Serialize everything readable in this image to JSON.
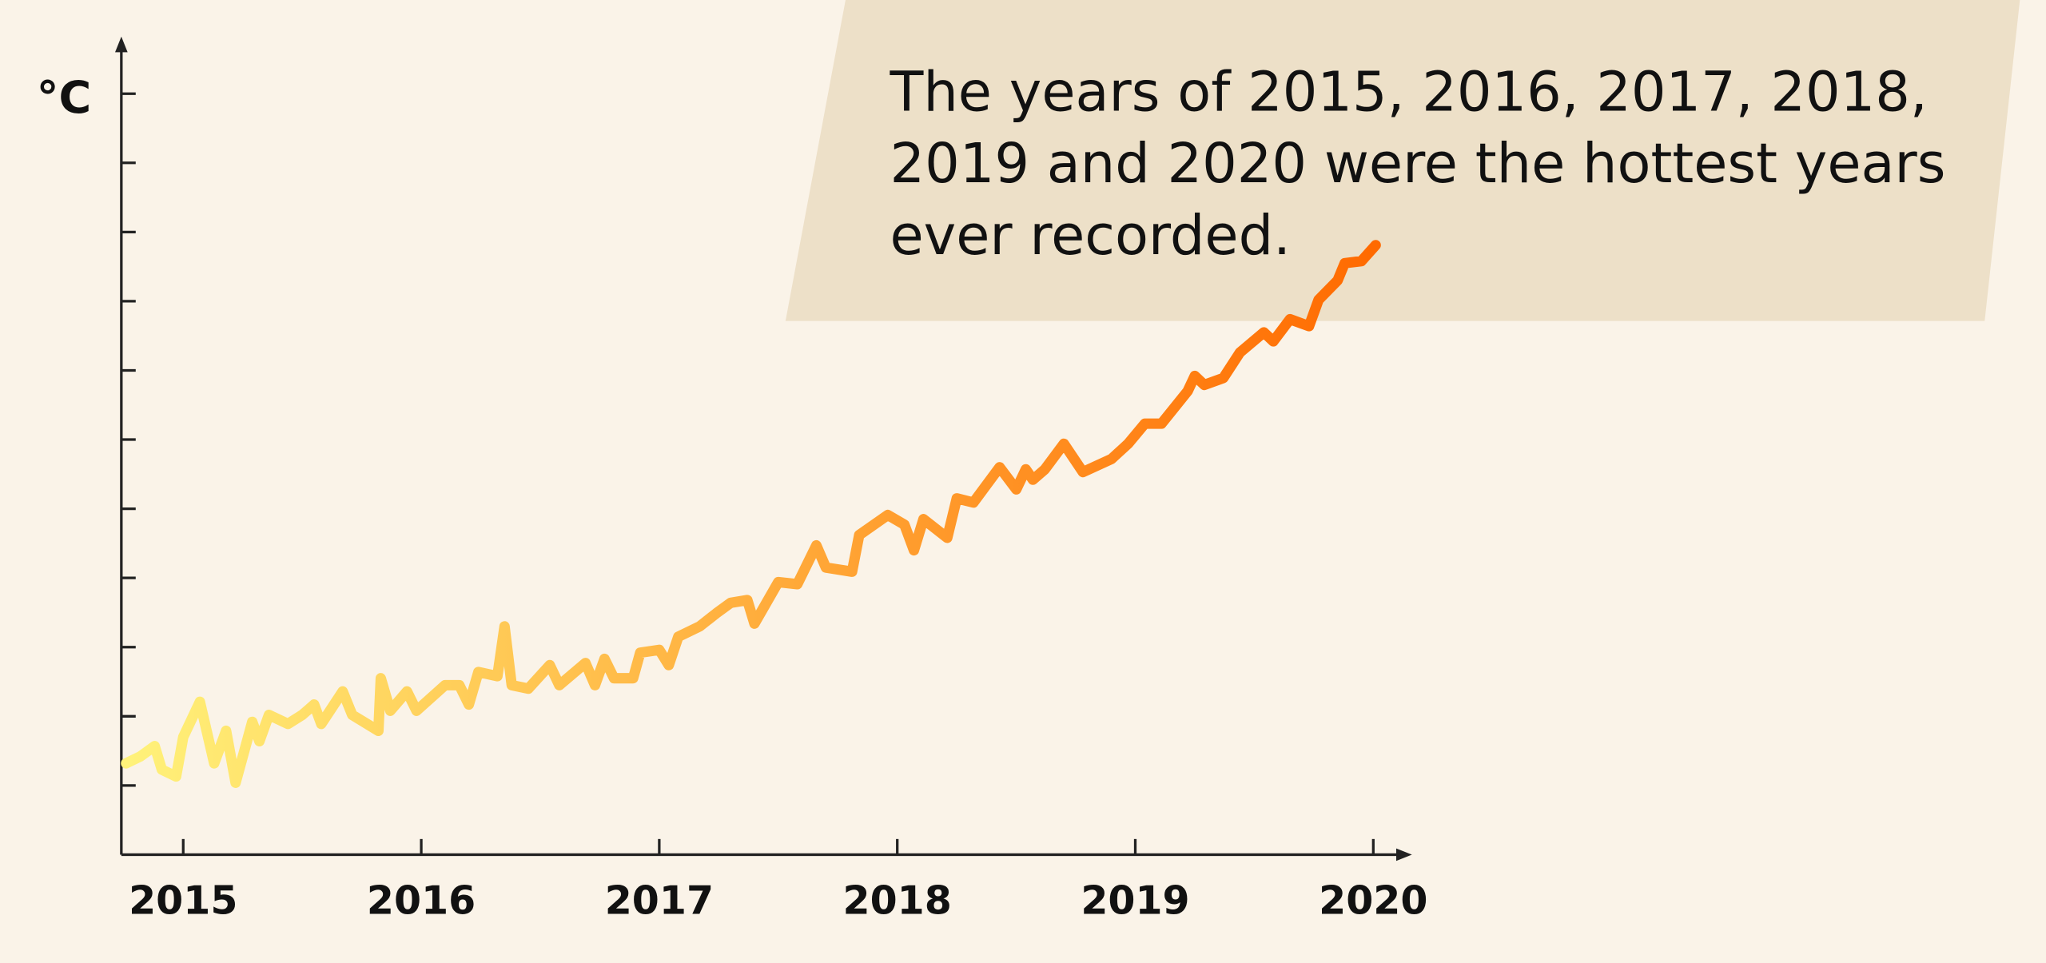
{
  "chart_data": {
    "type": "line",
    "y_label": "°C",
    "annotation": [
      "The years of 2015, 2016, 2017, 2018,",
      "2019 and 2020 were the hottest years",
      "ever recorded."
    ],
    "x": [
      2014.76,
      2014.82,
      2014.88,
      2014.91,
      2014.97,
      2015.0,
      2015.07,
      2015.13,
      2015.18,
      2015.22,
      2015.29,
      2015.32,
      2015.36,
      2015.44,
      2015.5,
      2015.55,
      2015.58,
      2015.67,
      2015.71,
      2015.82,
      2015.83,
      2015.87,
      2015.94,
      2015.98,
      2016.1,
      2016.16,
      2016.2,
      2016.24,
      2016.32,
      2016.35,
      2016.38,
      2016.45,
      2016.54,
      2016.58,
      2016.69,
      2016.73,
      2016.77,
      2016.81,
      2016.89,
      2016.92,
      2017.0,
      2017.04,
      2017.08,
      2017.17,
      2017.24,
      2017.3,
      2017.37,
      2017.4,
      2017.5,
      2017.58,
      2017.66,
      2017.7,
      2017.81,
      2017.84,
      2017.96,
      2018.03,
      2018.07,
      2018.11,
      2018.21,
      2018.25,
      2018.32,
      2018.43,
      2018.5,
      2018.54,
      2018.57,
      2018.62,
      2018.7,
      2018.78,
      2018.9,
      2018.97,
      2019.04,
      2019.11,
      2019.22,
      2019.25,
      2019.29,
      2019.37,
      2019.44,
      2019.54,
      2019.58,
      2019.65,
      2019.73,
      2019.77,
      2019.85,
      2019.88,
      2019.95,
      2020.01
    ],
    "values": [
      1.32,
      1.42,
      1.57,
      1.23,
      1.13,
      1.7,
      2.21,
      1.32,
      1.79,
      1.04,
      1.92,
      1.64,
      2.02,
      1.89,
      2.02,
      2.17,
      1.89,
      2.36,
      2.02,
      1.79,
      2.55,
      2.08,
      2.36,
      2.08,
      2.45,
      2.45,
      2.17,
      2.64,
      2.58,
      3.3,
      2.45,
      2.4,
      2.74,
      2.45,
      2.77,
      2.45,
      2.83,
      2.55,
      2.55,
      2.92,
      2.96,
      2.74,
      3.15,
      3.3,
      3.49,
      3.64,
      3.68,
      3.34,
      3.94,
      3.91,
      4.47,
      4.15,
      4.09,
      4.62,
      4.91,
      4.77,
      4.4,
      4.85,
      4.58,
      5.15,
      5.09,
      5.6,
      5.28,
      5.57,
      5.42,
      5.57,
      5.94,
      5.53,
      5.72,
      5.94,
      6.23,
      6.23,
      6.7,
      6.92,
      6.79,
      6.89,
      7.26,
      7.55,
      7.42,
      7.74,
      7.64,
      8.02,
      8.3,
      8.55,
      8.58,
      8.81
    ],
    "colors": [
      "#fff27a",
      "#ff6a00"
    ],
    "xlim": [
      2014.74,
      2020.14
    ],
    "xticks": [
      2015,
      2016,
      2017,
      2018,
      2019,
      2020
    ],
    "ylim": [
      0,
      11.75
    ],
    "yticks": [
      1,
      2,
      3,
      4,
      5,
      6,
      7,
      8,
      9,
      10,
      11
    ]
  }
}
